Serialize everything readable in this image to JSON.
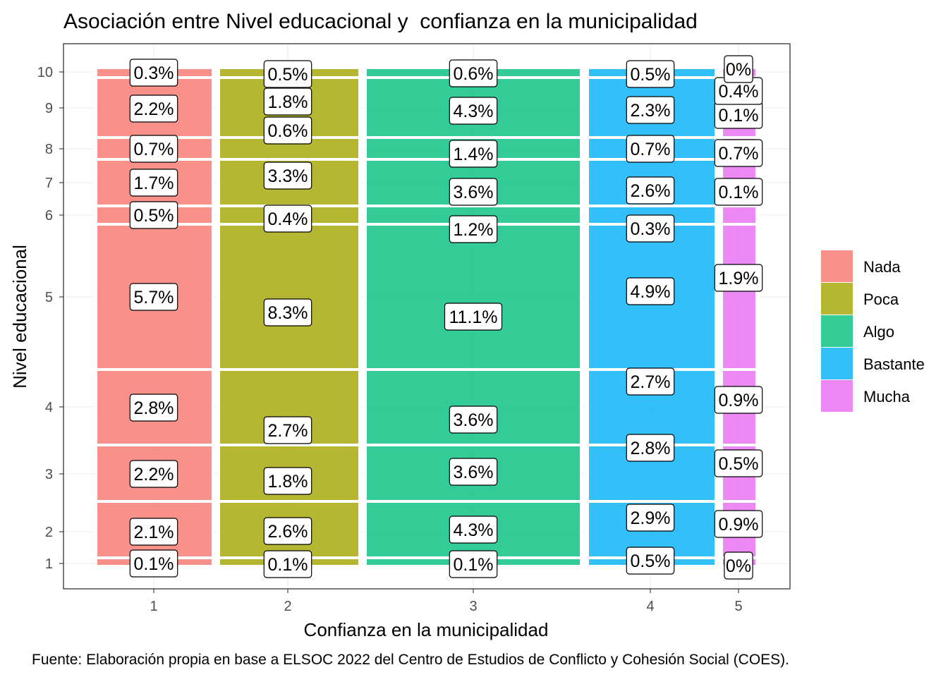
{
  "chart_data": {
    "type": "mosaic",
    "title": "Asociación entre Nivel educacional y  confianza en la municipalidad",
    "xlabel": "Confianza en la municipalidad",
    "ylabel": "Nivel educacional",
    "caption": "Fuente: Elaboración propia en base a ELSOC 2022 del Centro de Estudios de Conflicto y Cohesión Social (COES).",
    "x_ticks": [
      "1",
      "2",
      "3",
      "4",
      "5"
    ],
    "y_ticks": [
      "1",
      "2",
      "3",
      "4",
      "5",
      "6",
      "7",
      "8",
      "9",
      "10"
    ],
    "legend_position": "right",
    "grid": true,
    "series": [
      {
        "name": "Nada",
        "x": "1",
        "color": "#F8766D",
        "cells": [
          {
            "y": "1",
            "label": "0.1%"
          },
          {
            "y": "2",
            "label": "2.1%"
          },
          {
            "y": "3",
            "label": "2.2%"
          },
          {
            "y": "4",
            "label": "2.8%"
          },
          {
            "y": "5",
            "label": "5.7%"
          },
          {
            "y": "6",
            "label": "0.5%"
          },
          {
            "y": "7",
            "label": "1.7%"
          },
          {
            "y": "8",
            "label": "0.7%"
          },
          {
            "y": "9",
            "label": "2.2%"
          },
          {
            "y": "10",
            "label": "0.3%"
          }
        ]
      },
      {
        "name": "Poca",
        "x": "2",
        "color": "#A3A500",
        "cells": [
          {
            "y": "1",
            "label": "0.1%"
          },
          {
            "y": "2",
            "label": "2.6%"
          },
          {
            "y": "3",
            "label": "1.8%"
          },
          {
            "y": "4",
            "label": "2.7%"
          },
          {
            "y": "5",
            "label": "8.3%"
          },
          {
            "y": "6",
            "label": "0.4%"
          },
          {
            "y": "7",
            "label": "3.3%"
          },
          {
            "y": "8",
            "label": "0.6%"
          },
          {
            "y": "9",
            "label": "1.8%"
          },
          {
            "y": "10",
            "label": "0.5%"
          }
        ]
      },
      {
        "name": "Algo",
        "x": "3",
        "color": "#00BF7D",
        "cells": [
          {
            "y": "1",
            "label": "0.1%"
          },
          {
            "y": "2",
            "label": "4.3%"
          },
          {
            "y": "3",
            "label": "3.6%"
          },
          {
            "y": "4",
            "label": "3.6%"
          },
          {
            "y": "5",
            "label": "11.1%"
          },
          {
            "y": "6",
            "label": "1.2%"
          },
          {
            "y": "7",
            "label": "3.6%"
          },
          {
            "y": "8",
            "label": "1.4%"
          },
          {
            "y": "9",
            "label": "4.3%"
          },
          {
            "y": "10",
            "label": "0.6%"
          }
        ]
      },
      {
        "name": "Bastante",
        "x": "4",
        "color": "#00B0F6",
        "cells": [
          {
            "y": "1",
            "label": "0.5%"
          },
          {
            "y": "2",
            "label": "2.9%"
          },
          {
            "y": "3",
            "label": "2.8%"
          },
          {
            "y": "4",
            "label": "2.7%"
          },
          {
            "y": "5",
            "label": "4.9%"
          },
          {
            "y": "6",
            "label": "0.3%"
          },
          {
            "y": "7",
            "label": "2.6%"
          },
          {
            "y": "8",
            "label": "0.7%"
          },
          {
            "y": "9",
            "label": "2.3%"
          },
          {
            "y": "10",
            "label": "0.5%"
          }
        ]
      },
      {
        "name": "Mucha",
        "x": "5",
        "color": "#E76BF3",
        "cells": [
          {
            "y": "1",
            "label": "0%"
          },
          {
            "y": "2",
            "label": "0.9%"
          },
          {
            "y": "3",
            "label": "0.5%"
          },
          {
            "y": "4",
            "label": "0.9%"
          },
          {
            "y": "5",
            "label": "1.9%"
          },
          {
            "y": "6",
            "label": "0.1%"
          },
          {
            "y": "7",
            "label": "0.7%"
          },
          {
            "y": "8",
            "label": "0.1%"
          },
          {
            "y": "9",
            "label": "0.4%"
          },
          {
            "y": "10",
            "label": "0%"
          }
        ]
      }
    ]
  }
}
